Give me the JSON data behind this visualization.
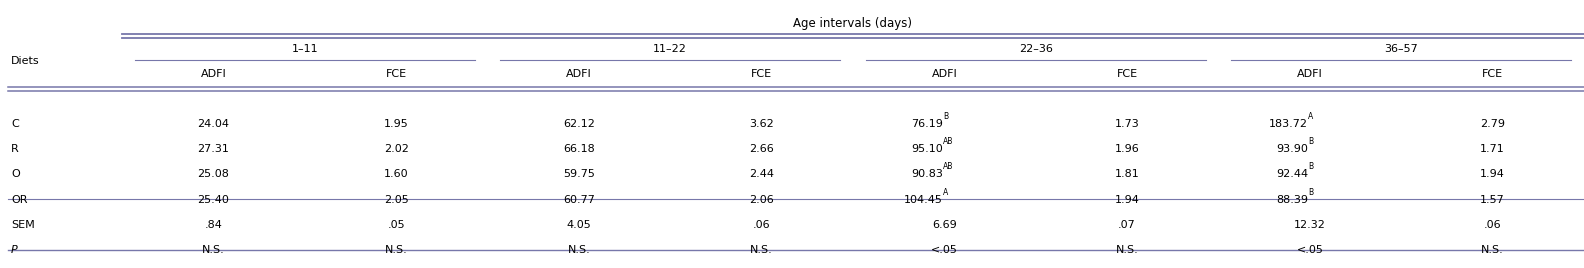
{
  "title": "Age intervals (days)",
  "col_groups": [
    "1–11",
    "11–22",
    "22–36",
    "36–57"
  ],
  "sub_cols": [
    "ADFI",
    "FCE"
  ],
  "data": {
    "C": [
      [
        "24.04",
        "1.95"
      ],
      [
        "62.12",
        "3.62"
      ],
      [
        "76.19",
        "1.73"
      ],
      [
        "183.72",
        "2.79"
      ]
    ],
    "R": [
      [
        "27.31",
        "2.02"
      ],
      [
        "66.18",
        "2.66"
      ],
      [
        "95.10",
        "1.96"
      ],
      [
        "93.90",
        "1.71"
      ]
    ],
    "O": [
      [
        "25.08",
        "1.60"
      ],
      [
        "59.75",
        "2.44"
      ],
      [
        "90.83",
        "1.81"
      ],
      [
        "92.44",
        "1.94"
      ]
    ],
    "OR": [
      [
        "25.40",
        "2.05"
      ],
      [
        "60.77",
        "2.06"
      ],
      [
        "104.45",
        "1.94"
      ],
      [
        "88.39",
        "1.57"
      ]
    ],
    "SEM": [
      [
        ".84",
        ".05"
      ],
      [
        "4.05",
        ".06"
      ],
      [
        "6.69",
        ".07"
      ],
      [
        "12.32",
        ".06"
      ]
    ],
    "P": [
      [
        "N.S.",
        "N.S."
      ],
      [
        "N.S.",
        "N.S."
      ],
      [
        "<.05",
        "N.S."
      ],
      [
        "<.05",
        "N.S."
      ]
    ]
  },
  "superscripts": {
    "C_2_0": "B",
    "R_2_0": "AB",
    "O_2_0": "AB",
    "OR_2_0": "A",
    "C_3_0": "A",
    "R_3_0": "B",
    "O_3_0": "B",
    "OR_3_0": "B"
  },
  "line_color": "#7777aa",
  "font_size": 8.0,
  "italic_rows": [
    "P"
  ],
  "background_color": "#ffffff"
}
